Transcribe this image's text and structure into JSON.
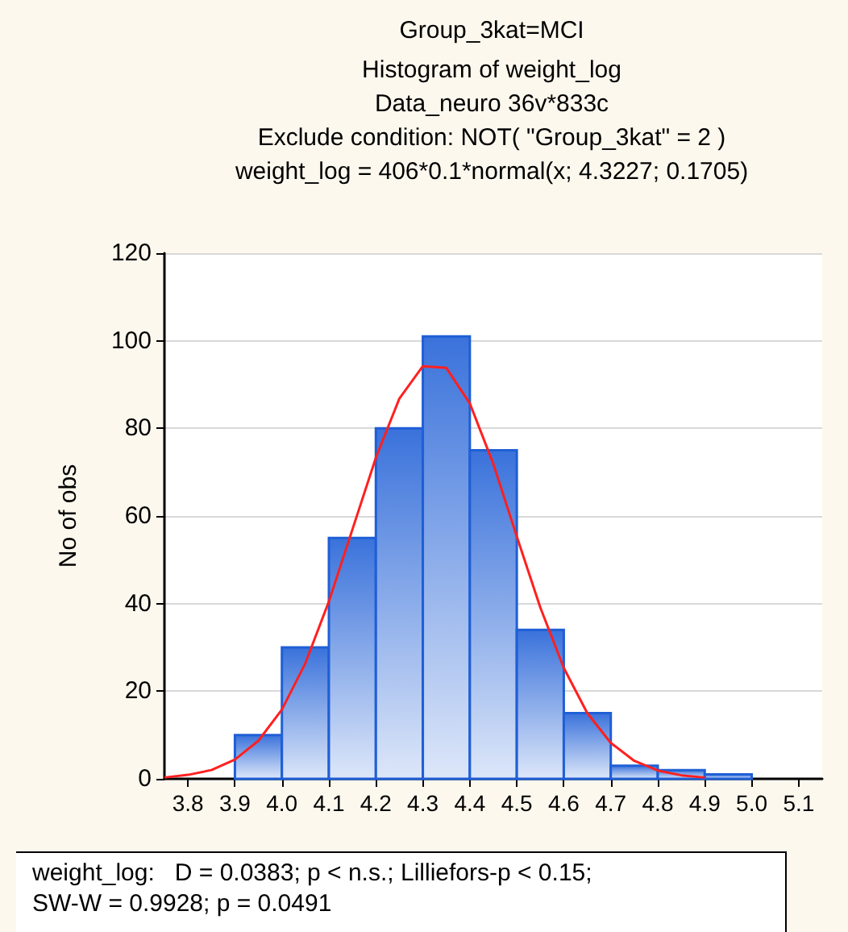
{
  "chart_data": {
    "type": "histogram",
    "title": "Group_3kat=MCI",
    "subtitle": "Histogram of weight_log\nData_neuro 36v*833c\nExclude condition: NOT( \"Group_3kat\" = 2 )\nweight_log = 406*0.1*normal(x; 4.3227; 0.1705)",
    "ylabel": "No of obs",
    "annotations": [
      "weight_log:   D = 0.0383; p < n.s.; Lilliefors-p < 0.15;\nSW-W = 0.9928; p = 0.0491"
    ],
    "series": [
      {
        "color": "#1f5fd6",
        "bins": [
          3.9,
          4.0,
          4.1,
          4.2,
          4.3,
          4.4,
          4.5,
          4.6,
          4.7,
          4.8,
          4.9,
          5.0
        ],
        "values": [
          10,
          30,
          55,
          80,
          101,
          75,
          34,
          15,
          3,
          2,
          1
        ]
      },
      {
        "type": "line",
        "color": "#ff2020",
        "marker": "none",
        "x": [
          3.75,
          3.8,
          3.85,
          3.9,
          3.95,
          4.0,
          4.05,
          4.1,
          4.15,
          4.2,
          4.25,
          4.3,
          4.35,
          4.4,
          4.45,
          4.5,
          4.55,
          4.6,
          4.65,
          4.7,
          4.75,
          4.8,
          4.85,
          4.9
        ],
        "values": [
          0.3,
          0.9,
          2.0,
          4.4,
          8.7,
          15.8,
          26.4,
          40.5,
          56.9,
          73.3,
          86.8,
          94.2,
          93.8,
          85.7,
          71.9,
          55.3,
          39.1,
          25.3,
          15.0,
          8.2,
          4.1,
          1.9,
          0.8,
          0.3
        ]
      }
    ],
    "xlim": [
      3.75,
      5.15
    ],
    "xticks": [
      {
        "value": 3.8,
        "label": "3.8"
      },
      {
        "value": 3.9,
        "label": "3.9"
      },
      {
        "value": 4.0,
        "label": "4.0"
      },
      {
        "value": 4.1,
        "label": "4.1"
      },
      {
        "value": 4.2,
        "label": "4.2"
      },
      {
        "value": 4.3,
        "label": "4.3"
      },
      {
        "value": 4.4,
        "label": "4.4"
      },
      {
        "value": 4.5,
        "label": "4.5"
      },
      {
        "value": 4.6,
        "label": "4.6"
      },
      {
        "value": 4.7,
        "label": "4.7"
      },
      {
        "value": 4.8,
        "label": "4.8"
      },
      {
        "value": 4.9,
        "label": "4.9"
      },
      {
        "value": 5.0,
        "label": "5.0"
      },
      {
        "value": 5.1,
        "label": "5.1"
      }
    ],
    "ylim": [
      0,
      120
    ],
    "yticks": [
      0,
      20,
      40,
      60,
      80,
      100,
      120
    ],
    "grid": "y"
  }
}
